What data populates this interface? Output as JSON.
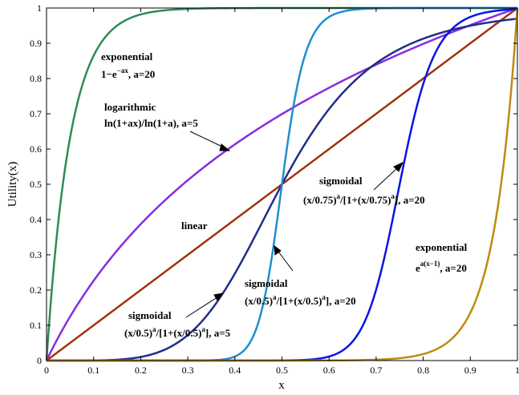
{
  "chart_data": {
    "type": "line",
    "xlabel": "x",
    "ylabel": "Utility(x)",
    "xlim": [
      0,
      1
    ],
    "ylim": [
      0,
      1
    ],
    "xticks": [
      "0",
      "0.1",
      "0.2",
      "0.3",
      "0.4",
      "0.5",
      "0.6",
      "0.7",
      "0.8",
      "0.9",
      "1"
    ],
    "yticks": [
      "0",
      "0.1",
      "0.2",
      "0.3",
      "0.4",
      "0.5",
      "0.6",
      "0.7",
      "0.8",
      "0.9",
      "1"
    ],
    "grid": false,
    "legend": "none",
    "series": [
      {
        "kind": "exp_rise",
        "a": 20,
        "color": "#2e8b57"
      },
      {
        "kind": "log",
        "a": 5,
        "color": "#8a2be2"
      },
      {
        "kind": "linear",
        "color": "#a0330f"
      },
      {
        "kind": "sigmoid",
        "c": 0.5,
        "a": 5,
        "color": "#1f2f8a"
      },
      {
        "kind": "sigmoid",
        "c": 0.5,
        "a": 20,
        "color": "#1f8fd0"
      },
      {
        "kind": "sigmoid",
        "c": 0.75,
        "a": 20,
        "color": "#0a14e6"
      },
      {
        "kind": "exp_growth",
        "a": 20,
        "color": "#c08a10"
      }
    ],
    "annotations": {
      "exp_rise": {
        "line1": "exponential",
        "line2_base": "1−e",
        "line2_sup": "−ax",
        "line2_tail": ", a=20"
      },
      "log": {
        "line1": "logarithmic",
        "line2": "ln(1+ax)/ln(1+a), a=5"
      },
      "linear": {
        "line1": "linear"
      },
      "sig075": {
        "line1": "sigmoidal",
        "p1": "(x/0.75)",
        "s1": "a",
        "p2": "/[1+(x/0.75)",
        "s2": "a",
        "p3": "], a=20"
      },
      "sig05_20": {
        "line1": "sigmoidal",
        "p1": "(x/0.5)",
        "s1": "a",
        "p2": "/[1+(x/0.5)",
        "s2": "a",
        "p3": "], a=20"
      },
      "sig05_5": {
        "line1": "sigmoidal",
        "p1": "(x/0.5)",
        "s1": "a",
        "p2": "/[1+(x/0.5)",
        "s2": "a",
        "p3": "], a=5"
      },
      "exp_growth": {
        "line1": "exponential",
        "line2_base": "e",
        "line2_sup": "a(x−1)",
        "line2_tail": ", a=20"
      }
    }
  }
}
